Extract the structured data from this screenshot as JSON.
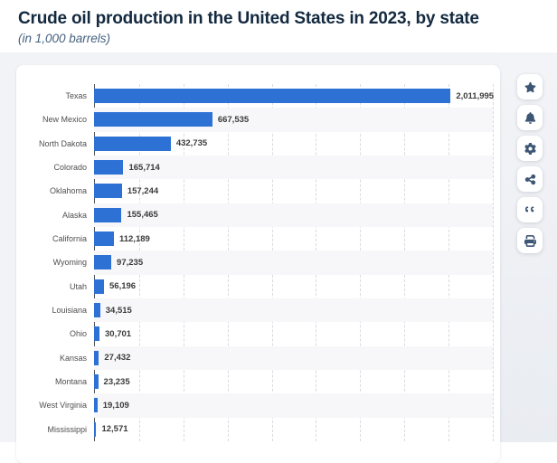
{
  "header": {
    "title": "Crude oil production in the United States in 2023, by state",
    "subtitle": "(in 1,000 barrels)"
  },
  "chart_data": {
    "type": "bar",
    "orientation": "horizontal",
    "title": "Crude oil production in the United States in 2023, by state",
    "unit": "1,000 barrels",
    "categories": [
      "Texas",
      "New Mexico",
      "North Dakota",
      "Colorado",
      "Oklahoma",
      "Alaska",
      "California",
      "Wyoming",
      "Utah",
      "Louisiana",
      "Ohio",
      "Kansas",
      "Montana",
      "West Virginia",
      "Mississippi"
    ],
    "values": [
      2011995,
      667535,
      432735,
      165714,
      157244,
      155465,
      112189,
      97235,
      56196,
      34515,
      30701,
      27432,
      23235,
      19109,
      12571
    ],
    "value_labels": [
      "2,011,995",
      "667,535",
      "432,735",
      "165,714",
      "157,244",
      "155,465",
      "112,189",
      "97,235",
      "56,196",
      "34,515",
      "30,701",
      "27,432",
      "23,235",
      "19,109",
      "12,571"
    ],
    "xlabel": "",
    "ylabel": "",
    "xlim": [
      0,
      2250000
    ],
    "gridline_interval": 250000,
    "grid": "vertical-dashed",
    "legend": "none",
    "bar_color": "#2d71d5",
    "row_alt_color": "#f7f7f9"
  },
  "toolbar": {
    "buttons": [
      {
        "id": "favorite",
        "icon": "star-icon"
      },
      {
        "id": "alerts",
        "icon": "bell-icon"
      },
      {
        "id": "settings",
        "icon": "gear-icon"
      },
      {
        "id": "share",
        "icon": "share-icon"
      },
      {
        "id": "cite",
        "icon": "quote-icon"
      },
      {
        "id": "print",
        "icon": "print-icon"
      }
    ]
  },
  "colors": {
    "title_text": "#13293f",
    "subtitle_text": "#44617d",
    "bar": "#2d71d5",
    "icon": "#3d5674",
    "page_bg": "#f2f3f6",
    "card_bg": "#ffffff"
  }
}
